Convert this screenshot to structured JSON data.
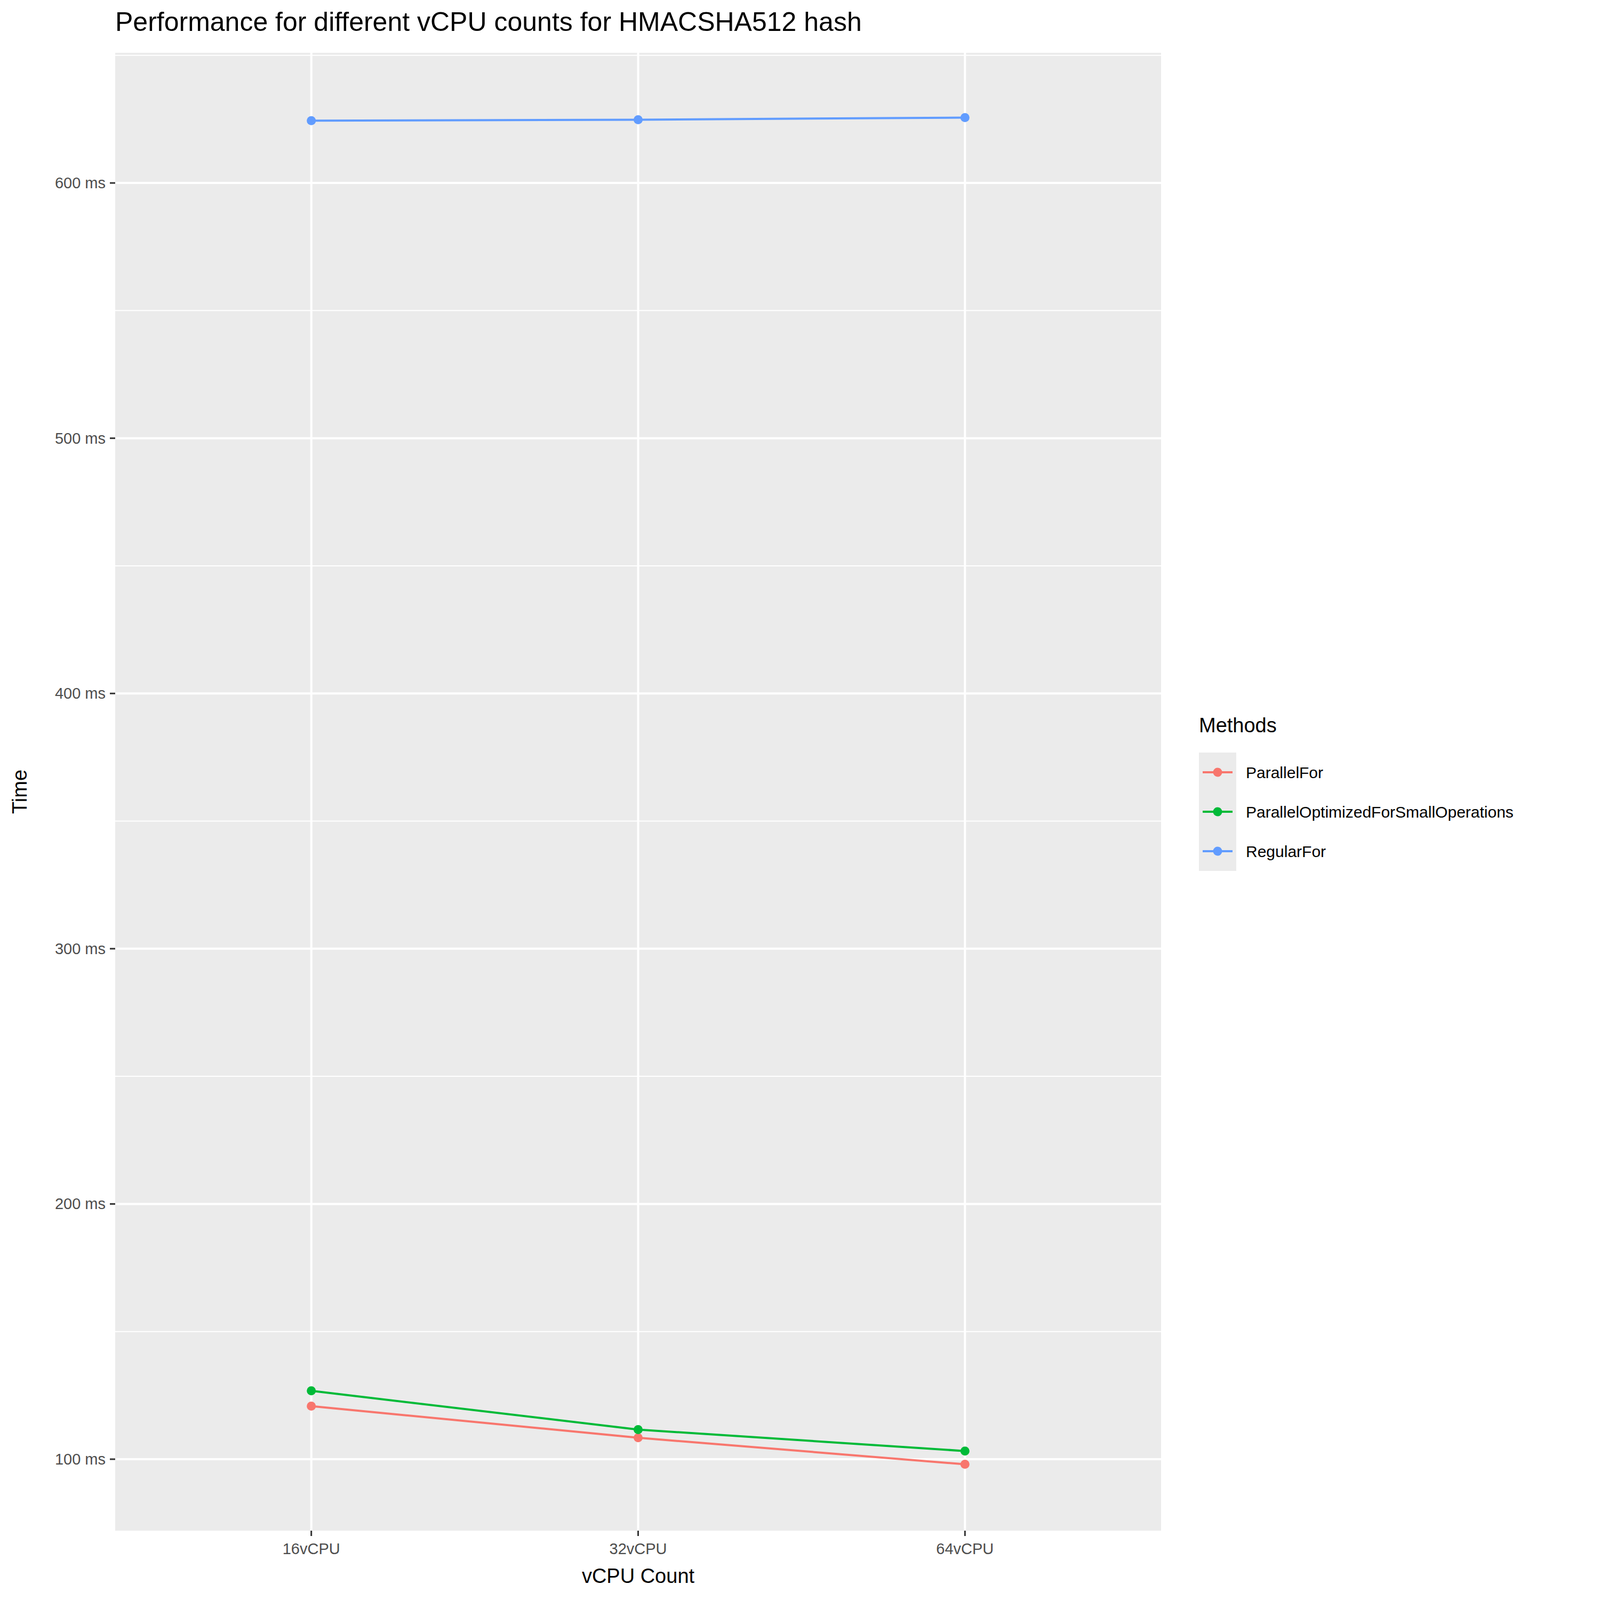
{
  "chart_data": {
    "type": "line",
    "title": "Performance for different vCPU counts for HMACSHA512 hash",
    "x_label": "vCPU Count",
    "y_label": "Time",
    "categories": [
      "16vCPU",
      "32vCPU",
      "64vCPU"
    ],
    "legend_title": "Methods",
    "series": [
      {
        "name": "ParallelFor",
        "color": "#F8766D",
        "values": [
          120.8,
          108.4,
          98.0
        ],
        "marker": "circle"
      },
      {
        "name": "ParallelOptimizedForSmallOperations",
        "color": "#00BA38",
        "values": [
          126.8,
          111.6,
          103.2
        ],
        "marker": "circle"
      },
      {
        "name": "RegularFor",
        "color": "#619CFF",
        "values": [
          624.4,
          624.8,
          625.6
        ],
        "marker": "circle"
      }
    ],
    "ylim": [
      72,
      651
    ],
    "yticks": [
      {
        "value": 100,
        "label": "100 ms"
      },
      {
        "value": 200,
        "label": "200 ms"
      },
      {
        "value": 300,
        "label": "300 ms"
      },
      {
        "value": 400,
        "label": "400 ms"
      },
      {
        "value": 500,
        "label": "500 ms"
      },
      {
        "value": 600,
        "label": "600 ms"
      }
    ],
    "grid": true,
    "legend": "right"
  }
}
